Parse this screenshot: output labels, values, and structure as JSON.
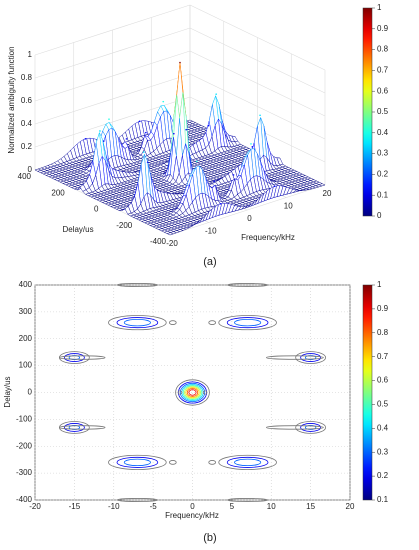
{
  "chart_data": [
    {
      "type": "surface3d",
      "caption": "(a)",
      "xlabel": "Frequency/kHz",
      "ylabel": "Delay/us",
      "zlabel": "Normalized ambiguity function",
      "xlim": [
        -20,
        20
      ],
      "xticks": [
        -20,
        -10,
        0,
        10,
        20
      ],
      "ylim": [
        -400,
        400
      ],
      "yticks": [
        -400,
        -200,
        0,
        200,
        400
      ],
      "zlim": [
        0,
        1
      ],
      "zticks": [
        0,
        0.2,
        0.4,
        0.6,
        0.8,
        1
      ],
      "clim": [
        0,
        1
      ],
      "cticks": [
        0,
        0.1,
        0.2,
        0.3,
        0.4,
        0.5,
        0.6,
        0.7,
        0.8,
        0.9,
        1
      ],
      "x": [
        0,
        -7,
        7,
        -7,
        7,
        -15,
        15,
        -15,
        15,
        -14,
        13,
        -14,
        13,
        -2.5,
        2.5,
        -2.5,
        2.5,
        -1.6,
        1.6,
        -7,
        7,
        -7,
        7
      ],
      "y": [
        0,
        260,
        260,
        -260,
        -260,
        130,
        130,
        -130,
        -130,
        130,
        130,
        -130,
        -130,
        260,
        260,
        -260,
        -260,
        0,
        0,
        400,
        400,
        -400,
        -400
      ],
      "values": [
        1,
        0.4,
        0.4,
        0.4,
        0.4,
        0.35,
        0.35,
        0.35,
        0.35,
        0.13,
        0.13,
        0.13,
        0.13,
        0.13,
        0.13,
        0.13,
        0.13,
        0.12,
        0.12,
        0.13,
        0.13,
        0.13,
        0.13
      ],
      "x_spread": [
        1.0,
        2.2,
        2.2,
        2.2,
        2.2,
        1.2,
        1.2,
        1.2,
        1.2,
        4,
        5,
        4,
        5,
        0.6,
        0.6,
        0.6,
        0.6,
        0.4,
        0.4,
        3.5,
        3.5,
        3.5,
        3.5
      ],
      "y_spread": [
        22,
        16,
        16,
        16,
        16,
        14,
        14,
        14,
        14,
        9,
        9,
        9,
        9,
        10,
        10,
        10,
        10,
        10,
        10,
        8,
        8,
        8,
        8
      ]
    },
    {
      "type": "contour",
      "caption": "(b)",
      "xlabel": "Frequency/kHz",
      "ylabel": "Delay/us",
      "xlim": [
        -20,
        20
      ],
      "xticks": [
        -20,
        -15,
        -10,
        -5,
        0,
        5,
        10,
        15,
        20
      ],
      "ylim": [
        -400,
        400
      ],
      "yticks": [
        -400,
        -300,
        -200,
        -100,
        0,
        100,
        200,
        300,
        400
      ],
      "clim": [
        0.1,
        1
      ],
      "cticks": [
        0.1,
        0.2,
        0.3,
        0.4,
        0.5,
        0.6,
        0.7,
        0.8,
        0.9,
        1
      ],
      "levels": [
        0.1,
        0.2,
        0.3,
        0.4,
        0.5,
        0.6,
        0.7,
        0.8,
        0.9
      ],
      "grid": true,
      "x": [
        0,
        -7,
        7,
        -7,
        7,
        -15,
        15,
        -15,
        15,
        -14,
        13,
        -14,
        13,
        -2.5,
        2.5,
        -2.5,
        2.5,
        -1.6,
        1.6,
        -7,
        7,
        -7,
        7
      ],
      "y": [
        0,
        260,
        260,
        -260,
        -260,
        130,
        130,
        -130,
        -130,
        130,
        130,
        -130,
        -130,
        260,
        260,
        -260,
        -260,
        0,
        0,
        400,
        400,
        -400,
        -400
      ],
      "values": [
        1,
        0.4,
        0.4,
        0.4,
        0.4,
        0.35,
        0.35,
        0.35,
        0.35,
        0.13,
        0.13,
        0.13,
        0.13,
        0.13,
        0.13,
        0.13,
        0.13,
        0.12,
        0.12,
        0.13,
        0.13,
        0.13,
        0.13
      ],
      "x_spread": [
        1.0,
        2.2,
        2.2,
        2.2,
        2.2,
        1.2,
        1.2,
        1.2,
        1.2,
        4,
        5,
        4,
        5,
        0.6,
        0.6,
        0.6,
        0.6,
        0.4,
        0.4,
        3.5,
        3.5,
        3.5,
        3.5
      ],
      "y_spread": [
        22,
        16,
        16,
        16,
        16,
        14,
        14,
        14,
        14,
        9,
        9,
        9,
        9,
        10,
        10,
        10,
        10,
        10,
        10,
        8,
        8,
        8,
        8
      ]
    }
  ]
}
